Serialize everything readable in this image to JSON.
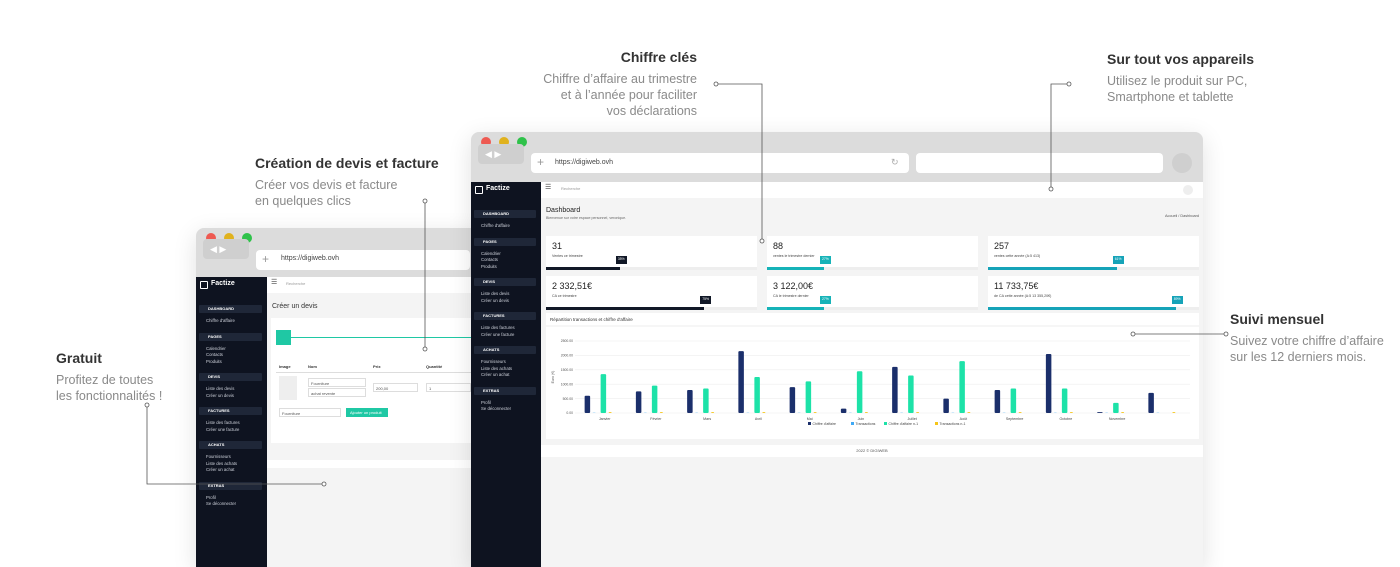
{
  "callouts": [
    {
      "title": "Chiffre clés",
      "lines": [
        "Chiffre d’affaire au trimestre",
        "et à l’année pour faciliter",
        "vos déclarations"
      ]
    },
    {
      "title": "Sur tout vos appareils",
      "lines": [
        "Utilisez le produit sur PC,",
        "Smartphone et tablette"
      ]
    },
    {
      "title": "Création de devis et facture",
      "lines": [
        "Créer vos devis et facture",
        "en quelques clics"
      ]
    },
    {
      "title": "Gratuit",
      "lines": [
        "Profitez de toutes",
        "les fonctionnalités !"
      ]
    },
    {
      "title": "Suivi mensuel",
      "lines": [
        "Suivez votre chiffre d’affaire",
        "sur les 12 derniers mois."
      ]
    }
  ],
  "browser": {
    "url": "https://digiweb.ovh"
  },
  "app": {
    "brand": "Factize",
    "search": "Recherche",
    "sidebar": [
      {
        "title": "DASHBOARD",
        "items": [
          "Chiffre d'affaire"
        ]
      },
      {
        "title": "PAGES",
        "items": [
          "Calendrier",
          "Contacts",
          "Produits"
        ]
      },
      {
        "title": "DEVIS",
        "items": [
          "Liste des devis",
          "Créer un devis"
        ]
      },
      {
        "title": "FACTURES",
        "items": [
          "Liste des factures",
          "Créer une facture"
        ]
      },
      {
        "title": "ACHATS",
        "items": [
          "Fournisseurs",
          "Liste des achats",
          "Créer un achat"
        ]
      },
      {
        "title": "EXTRAS",
        "items": [
          "Profil",
          "Se déconnecter"
        ]
      }
    ]
  },
  "devis": {
    "title": "Créer un devis",
    "headers": [
      "Image",
      "Nom",
      "Prix",
      "Quantité"
    ],
    "inputs": [
      "Fourniture",
      "achat revente",
      "200,00",
      "1"
    ],
    "select": "Fourniture",
    "button": "Ajouter un produit"
  },
  "dashboard": {
    "title": "Dashboard",
    "subtitle": "Bienvenue sur votre espace personnel, veronique.",
    "breadcrumb": "Accueil / Dashboard",
    "cards": [
      {
        "value": "31",
        "label": "Ventes ce trimestre",
        "pct": 35,
        "pct_label": "35%",
        "color": "#111827"
      },
      {
        "value": "88",
        "label": "ventes le trimestre dernier",
        "pct": 27,
        "pct_label": "27%",
        "color": "#16b3b8"
      },
      {
        "value": "257",
        "label": "ventes cette année (A:5 413)",
        "pct": 61,
        "pct_label": "61%",
        "color": "#16a3b8"
      },
      {
        "value": "2 332,51€",
        "label": "CA ce trimestre",
        "pct": 75,
        "pct_label": "75%",
        "color": "#111827"
      },
      {
        "value": "3 122,00€",
        "label": "CA le trimestre dernier",
        "pct": 27,
        "pct_label": "27%",
        "color": "#16b3b8"
      },
      {
        "value": "11 733,75€",
        "label": "de CA cette année (A:5 13 355,20€)",
        "pct": 89,
        "pct_label": "89%",
        "color": "#16a3b8"
      }
    ],
    "footer": "2022 © DIGIWEB"
  },
  "chart_data": {
    "type": "bar",
    "title": "Répartition transactions et chiffre d'affaire",
    "y_label": "Euro (€)",
    "categories": [
      "Janvier",
      "Février",
      "Mars",
      "Avril",
      "Mai",
      "Juin",
      "Juillet",
      "Août",
      "Septembre",
      "Octobre",
      "Novembre",
      null
    ],
    "series": [
      {
        "name": "Chiffre d'affaire",
        "color": "#1b2f6b",
        "values": [
          600,
          750,
          800,
          2150,
          900,
          150,
          1600,
          500,
          800,
          2050,
          30,
          700
        ]
      },
      {
        "name": "Transactions",
        "color": "#3fa9f5",
        "values": [
          10,
          10,
          10,
          10,
          10,
          10,
          10,
          10,
          10,
          10,
          10,
          10
        ]
      },
      {
        "name": "Chiffre d'affaire n-1",
        "color": "#1de2a8",
        "values": [
          1350,
          950,
          850,
          1250,
          1100,
          1450,
          1300,
          1800,
          850,
          850,
          350,
          0
        ]
      },
      {
        "name": "Transactions n-1",
        "color": "#f5c518",
        "values": [
          30,
          30,
          30,
          30,
          30,
          30,
          30,
          30,
          30,
          30,
          30,
          30
        ]
      }
    ],
    "ylim": [
      0,
      2500
    ],
    "yticks": [
      {
        "value": 0,
        "label": "0.00"
      },
      {
        "value": 500,
        "label": "500.00"
      },
      {
        "value": 1000,
        "label": "1000.00"
      },
      {
        "value": 1500,
        "label": "1500.00"
      },
      {
        "value": 2000,
        "label": "2000.00"
      },
      {
        "value": 2500,
        "label": "2500.00"
      }
    ],
    "grid": true
  }
}
